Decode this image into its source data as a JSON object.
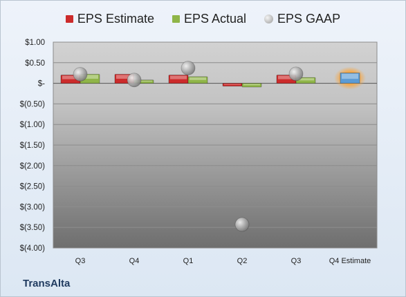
{
  "chart_data": {
    "type": "bar",
    "categories": [
      "Q3",
      "Q4",
      "Q1",
      "Q2",
      "Q3",
      "Q4 Estimate"
    ],
    "series": [
      {
        "name": "EPS Estimate",
        "values": [
          0.2,
          0.22,
          0.2,
          -0.07,
          0.2,
          null
        ],
        "color": "#cc2b2b"
      },
      {
        "name": "EPS Actual",
        "values": [
          0.22,
          0.08,
          0.16,
          -0.09,
          0.14,
          null
        ],
        "color": "#8fb548"
      },
      {
        "name": "EPS GAAP",
        "values": [
          0.22,
          0.08,
          0.37,
          -3.43,
          0.23,
          null
        ],
        "color": "#a6a6a6"
      }
    ],
    "forecast": {
      "category": "Q4 Estimate",
      "value": 0.25,
      "color": "#5b9bd5"
    },
    "yticks": [
      "$1.00",
      "$0.50",
      "$-",
      "$(0.50)",
      "$(1.00)",
      "$(1.50)",
      "$(2.00)",
      "$(2.50)",
      "$(3.00)",
      "$(3.50)",
      "$(4.00)"
    ],
    "ytick_values": [
      1,
      0.5,
      0,
      -0.5,
      -1,
      -1.5,
      -2,
      -2.5,
      -3,
      -3.5,
      -4
    ],
    "ylim": [
      -4,
      1
    ],
    "grid": true,
    "legend": "top-center",
    "company": "TransAlta"
  }
}
